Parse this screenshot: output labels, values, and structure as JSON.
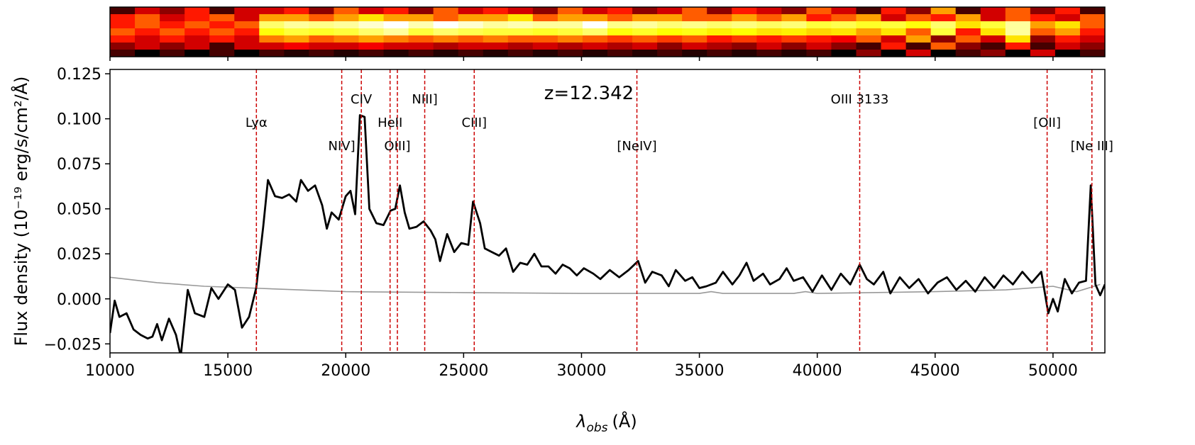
{
  "chart_data": [
    {
      "type": "heatmap",
      "colormap": "hot",
      "values": [
        [
          0.1,
          0.3,
          0.2,
          0.4,
          0.1,
          0.3,
          0.3,
          0.4,
          0.2,
          0.5,
          0.3,
          0.4,
          0.2,
          0.5,
          0.3,
          0.4,
          0.3,
          0.2,
          0.5,
          0.3,
          0.4,
          0.2,
          0.3,
          0.5,
          0.2,
          0.4,
          0.3,
          0.2,
          0.5,
          0.3,
          0.1,
          0.4,
          0.2,
          0.6,
          0.1,
          0.3,
          0.5,
          0.2,
          0.4,
          0.1
        ],
        [
          0.4,
          0.5,
          0.3,
          0.4,
          0.5,
          0.3,
          0.6,
          0.6,
          0.5,
          0.6,
          0.7,
          0.6,
          0.6,
          0.5,
          0.6,
          0.6,
          0.7,
          0.5,
          0.6,
          0.6,
          0.5,
          0.6,
          0.6,
          0.5,
          0.5,
          0.6,
          0.5,
          0.6,
          0.4,
          0.5,
          0.6,
          0.3,
          0.5,
          0.4,
          0.6,
          0.3,
          0.5,
          0.4,
          0.3,
          0.5
        ],
        [
          0.4,
          0.5,
          0.4,
          0.5,
          0.4,
          0.5,
          0.85,
          0.9,
          0.88,
          0.9,
          0.95,
          1.0,
          0.92,
          1.0,
          0.95,
          0.9,
          0.92,
          0.9,
          0.9,
          1.0,
          0.88,
          0.9,
          0.86,
          0.88,
          0.85,
          0.87,
          0.84,
          0.86,
          0.8,
          0.82,
          0.78,
          0.8,
          0.75,
          0.85,
          0.7,
          0.8,
          0.9,
          0.6,
          0.7,
          0.5
        ],
        [
          0.5,
          0.4,
          0.5,
          0.4,
          0.5,
          0.4,
          0.75,
          0.8,
          0.78,
          0.8,
          0.85,
          0.9,
          0.8,
          0.85,
          0.82,
          0.8,
          0.8,
          0.78,
          0.8,
          0.85,
          0.75,
          0.78,
          0.74,
          0.76,
          0.72,
          0.74,
          0.7,
          0.72,
          0.68,
          0.7,
          0.6,
          0.7,
          0.5,
          0.8,
          0.4,
          0.7,
          0.9,
          0.5,
          0.6,
          0.4
        ],
        [
          0.4,
          0.3,
          0.4,
          0.3,
          0.4,
          0.3,
          0.55,
          0.6,
          0.5,
          0.55,
          0.6,
          0.55,
          0.5,
          0.55,
          0.5,
          0.55,
          0.5,
          0.5,
          0.55,
          0.5,
          0.45,
          0.5,
          0.45,
          0.5,
          0.4,
          0.45,
          0.4,
          0.45,
          0.4,
          0.35,
          0.5,
          0.3,
          0.6,
          0.2,
          0.5,
          0.3,
          0.7,
          0.2,
          0.4,
          0.3
        ],
        [
          0.2,
          0.3,
          0.2,
          0.3,
          0.1,
          0.3,
          0.3,
          0.35,
          0.3,
          0.3,
          0.35,
          0.3,
          0.3,
          0.25,
          0.3,
          0.3,
          0.25,
          0.3,
          0.25,
          0.3,
          0.25,
          0.3,
          0.2,
          0.3,
          0.25,
          0.2,
          0.3,
          0.2,
          0.3,
          0.2,
          0.1,
          0.4,
          0.1,
          0.5,
          0.2,
          0.1,
          0.4,
          0.1,
          0.3,
          0.2
        ],
        [
          0.1,
          0.0,
          0.1,
          0.0,
          0.1,
          0.0,
          0.1,
          0.05,
          0.1,
          0.05,
          0.1,
          0.05,
          0.1,
          0.05,
          0.1,
          0.05,
          0.1,
          0.05,
          0.1,
          0.05,
          0.1,
          0.05,
          0.1,
          0.05,
          0.1,
          0.05,
          0.1,
          0.05,
          0.1,
          0.0,
          0.2,
          0.0,
          0.3,
          0.0,
          0.1,
          0.2,
          0.0,
          0.3,
          0.0,
          0.1
        ]
      ]
    },
    {
      "type": "line",
      "xlabel": {
        "symbol": "λ",
        "subscript": "obs",
        "unit": "(Å)"
      },
      "ylabel": "Flux density (10⁻¹⁹ erg/s/cm²/Å)",
      "annotation": "z=12.342",
      "xlim": [
        10000,
        52200
      ],
      "ylim": [
        -0.03,
        0.1274
      ],
      "xticks": [
        10000,
        15000,
        20000,
        25000,
        30000,
        35000,
        40000,
        45000,
        50000
      ],
      "yticks": [
        {
          "value": -0.025,
          "label": "−0.025"
        },
        {
          "value": 0,
          "label": "0.000"
        },
        0.025,
        {
          "value": 0.05,
          "label": "0.050"
        },
        0.075,
        {
          "value": 0.1,
          "label": "0.100"
        },
        0.125
      ],
      "line_color": "#cc0000",
      "lines": [
        {
          "x": 16210,
          "label": "Lyα"
        },
        {
          "x": 19830,
          "label": "NIV]"
        },
        {
          "x": 20660,
          "label": "CIV"
        },
        {
          "x": 21880,
          "label": "HeII"
        },
        {
          "x": 22190,
          "label": "OIII]"
        },
        {
          "x": 23350,
          "label": "NIII]"
        },
        {
          "x": 25450,
          "label": "CIII]"
        },
        {
          "x": 32350,
          "label": "[NeIV]"
        },
        {
          "x": 41800,
          "label": "OIII 3133"
        },
        {
          "x": 49750,
          "label": "[OII]"
        },
        {
          "x": 51650,
          "label": "[Ne III]"
        }
      ],
      "series": [
        {
          "color": "#999999",
          "x": [
            10000,
            12000,
            14000,
            16000,
            20000,
            25000,
            30000,
            35000,
            35500,
            36000,
            39000,
            39500,
            40000,
            45000,
            48000,
            50000,
            51000,
            52000
          ],
          "values": [
            0.012,
            0.009,
            0.007,
            0.006,
            0.004,
            0.0035,
            0.003,
            0.003,
            0.004,
            0.003,
            0.003,
            0.004,
            0.003,
            0.004,
            0.005,
            0.007,
            0.004,
            0.008
          ]
        },
        {
          "color": "#000000",
          "x": [
            10000,
            10200,
            10400,
            10700,
            11000,
            11300,
            11600,
            11800,
            12000,
            12200,
            12500,
            12800,
            13000,
            13300,
            13600,
            14000,
            14300,
            14600,
            15000,
            15300,
            15600,
            15900,
            16200,
            16500,
            16700,
            17000,
            17300,
            17600,
            17900,
            18100,
            18400,
            18700,
            19000,
            19200,
            19400,
            19700,
            20000,
            20200,
            20400,
            20600,
            20800,
            21000,
            21300,
            21600,
            21900,
            22100,
            22300,
            22500,
            22700,
            23000,
            23300,
            23600,
            23800,
            24000,
            24300,
            24600,
            24900,
            25200,
            25400,
            25700,
            25900,
            26200,
            26500,
            26800,
            27100,
            27400,
            27700,
            28000,
            28300,
            28600,
            28900,
            29200,
            29500,
            29800,
            30100,
            30500,
            30800,
            31200,
            31600,
            32000,
            32400,
            32700,
            33000,
            33400,
            33700,
            34000,
            34400,
            34700,
            35000,
            35300,
            35700,
            36000,
            36400,
            36700,
            37000,
            37300,
            37700,
            38000,
            38400,
            38700,
            39000,
            39400,
            39800,
            40200,
            40600,
            41000,
            41400,
            41800,
            42100,
            42400,
            42800,
            43100,
            43500,
            43900,
            44300,
            44700,
            45100,
            45500,
            45900,
            46300,
            46700,
            47100,
            47500,
            47900,
            48300,
            48700,
            49100,
            49500,
            49800,
            50000,
            50200,
            50500,
            50800,
            51100,
            51400,
            51600,
            51800,
            52000,
            52200
          ],
          "values": [
            -0.019,
            -0.001,
            -0.01,
            -0.008,
            -0.017,
            -0.02,
            -0.022,
            -0.021,
            -0.014,
            -0.023,
            -0.011,
            -0.02,
            -0.032,
            0.005,
            -0.008,
            -0.01,
            0.006,
            0.0,
            0.008,
            0.005,
            -0.016,
            -0.01,
            0.006,
            0.04,
            0.066,
            0.057,
            0.056,
            0.058,
            0.054,
            0.066,
            0.06,
            0.063,
            0.052,
            0.039,
            0.048,
            0.044,
            0.057,
            0.06,
            0.047,
            0.102,
            0.101,
            0.05,
            0.042,
            0.041,
            0.049,
            0.05,
            0.063,
            0.048,
            0.039,
            0.04,
            0.043,
            0.038,
            0.033,
            0.021,
            0.036,
            0.026,
            0.031,
            0.03,
            0.054,
            0.042,
            0.028,
            0.026,
            0.024,
            0.028,
            0.015,
            0.02,
            0.019,
            0.025,
            0.018,
            0.018,
            0.014,
            0.019,
            0.017,
            0.013,
            0.017,
            0.014,
            0.011,
            0.016,
            0.012,
            0.016,
            0.021,
            0.009,
            0.015,
            0.013,
            0.007,
            0.016,
            0.01,
            0.012,
            0.006,
            0.007,
            0.009,
            0.015,
            0.008,
            0.013,
            0.02,
            0.01,
            0.014,
            0.008,
            0.011,
            0.017,
            0.01,
            0.012,
            0.004,
            0.013,
            0.005,
            0.014,
            0.008,
            0.019,
            0.011,
            0.008,
            0.015,
            0.003,
            0.012,
            0.006,
            0.011,
            0.003,
            0.009,
            0.012,
            0.005,
            0.01,
            0.004,
            0.012,
            0.006,
            0.013,
            0.008,
            0.015,
            0.009,
            0.015,
            -0.008,
            0.0,
            -0.007,
            0.011,
            0.003,
            0.009,
            0.01,
            0.063,
            0.008,
            0.002,
            0.008
          ]
        }
      ]
    }
  ]
}
